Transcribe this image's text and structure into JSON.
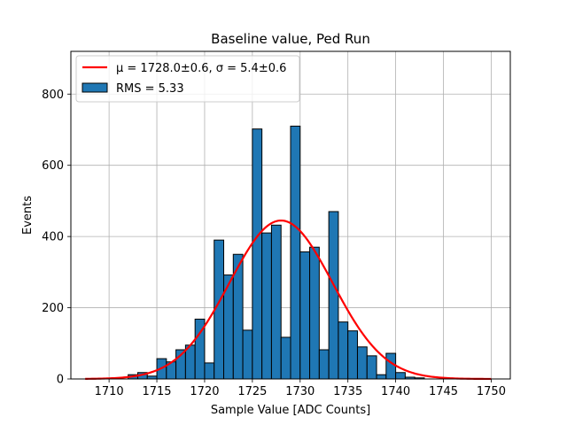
{
  "chart_data": {
    "type": "bar",
    "title": "Baseline value, Ped Run",
    "xlabel": "Sample Value [ADC Counts]",
    "ylabel": "Events",
    "xlim": [
      1706,
      1752
    ],
    "ylim": [
      0,
      920
    ],
    "x_ticks": [
      1710,
      1715,
      1720,
      1725,
      1730,
      1735,
      1740,
      1745,
      1750
    ],
    "y_ticks": [
      0,
      200,
      400,
      600,
      800
    ],
    "grid": true,
    "legend_position": "top-left",
    "bin_width": 1,
    "bins": [
      {
        "x": 1712.5,
        "count": 12
      },
      {
        "x": 1713.5,
        "count": 18
      },
      {
        "x": 1714.5,
        "count": 8
      },
      {
        "x": 1715.5,
        "count": 57
      },
      {
        "x": 1716.5,
        "count": 48
      },
      {
        "x": 1717.5,
        "count": 82
      },
      {
        "x": 1718.5,
        "count": 95
      },
      {
        "x": 1719.5,
        "count": 168
      },
      {
        "x": 1720.5,
        "count": 45
      },
      {
        "x": 1721.5,
        "count": 390
      },
      {
        "x": 1722.5,
        "count": 292
      },
      {
        "x": 1723.5,
        "count": 350
      },
      {
        "x": 1724.5,
        "count": 137
      },
      {
        "x": 1725.5,
        "count": 702
      },
      {
        "x": 1726.5,
        "count": 410
      },
      {
        "x": 1727.5,
        "count": 432
      },
      {
        "x": 1728.5,
        "count": 117
      },
      {
        "x": 1729.5,
        "count": 710
      },
      {
        "x": 1730.5,
        "count": 357
      },
      {
        "x": 1731.5,
        "count": 370
      },
      {
        "x": 1732.5,
        "count": 82
      },
      {
        "x": 1733.5,
        "count": 470
      },
      {
        "x": 1734.5,
        "count": 160
      },
      {
        "x": 1735.5,
        "count": 135
      },
      {
        "x": 1736.5,
        "count": 90
      },
      {
        "x": 1737.5,
        "count": 65
      },
      {
        "x": 1738.5,
        "count": 12
      },
      {
        "x": 1739.5,
        "count": 72
      },
      {
        "x": 1740.5,
        "count": 18
      },
      {
        "x": 1741.5,
        "count": 5
      },
      {
        "x": 1742.5,
        "count": 3
      }
    ],
    "fit": {
      "mu": 1728.0,
      "sigma": 5.4,
      "amplitude": 445,
      "x_range": [
        1707.5,
        1750
      ],
      "color": "#ff0000"
    },
    "bar_color": "#1f77b4",
    "series": [
      {
        "name": "μ = 1728.0±0.6, σ = 5.4±0.6",
        "type": "line"
      },
      {
        "name": "RMS = 5.33",
        "type": "bar"
      }
    ]
  }
}
